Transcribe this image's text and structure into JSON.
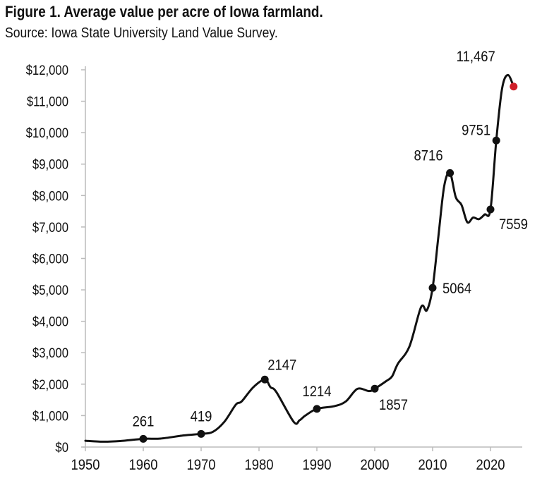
{
  "chart_data": {
    "type": "line",
    "title": "Figure 1. Average value per acre of Iowa farmland.",
    "subtitle": "Source: Iowa State University Land Value Survey.",
    "xlabel": "",
    "ylabel": "",
    "xlim": [
      1950,
      2024
    ],
    "ylim": [
      0,
      12000
    ],
    "x_ticks": [
      1950,
      1960,
      1970,
      1980,
      1990,
      2000,
      2010,
      2020
    ],
    "x_tick_labels": [
      "1950",
      "1960",
      "1970",
      "1980",
      "1990",
      "2000",
      "2010",
      "2020"
    ],
    "y_ticks": [
      0,
      1000,
      2000,
      3000,
      4000,
      5000,
      6000,
      7000,
      8000,
      9000,
      10000,
      11000,
      12000
    ],
    "y_tick_labels": [
      "$0",
      "$1,000",
      "$2,000",
      "$3,000",
      "$4,000",
      "$5,000",
      "$6,000",
      "$7,000",
      "$8,000",
      "$9,000",
      "$10,000",
      "$11,000",
      "$12,000"
    ],
    "grid": false,
    "line_color": "#111111",
    "highlight_color": "#d0202a",
    "series": [
      {
        "x": [
          1950,
          1953,
          1956,
          1960,
          1963,
          1967,
          1970,
          1972,
          1974,
          1976,
          1977,
          1979,
          1981,
          1982,
          1983,
          1986,
          1987,
          1988,
          1990,
          1993,
          1995,
          1997,
          1999,
          2000,
          2002,
          2003,
          2004,
          2006,
          2008,
          2009,
          2010,
          2011,
          2012,
          2013,
          2014,
          2015,
          2016,
          2017,
          2018,
          2019,
          2020,
          2021,
          2022,
          2023,
          2024
        ],
        "y": [
          200,
          170,
          190,
          261,
          270,
          370,
          419,
          480,
          800,
          1350,
          1450,
          1900,
          2147,
          1900,
          1750,
          800,
          850,
          1000,
          1214,
          1300,
          1450,
          1850,
          1780,
          1857,
          2100,
          2250,
          2650,
          3200,
          4450,
          4350,
          5064,
          6700,
          8300,
          8716,
          7950,
          7700,
          7150,
          7300,
          7250,
          7400,
          7559,
          9751,
          11400,
          11835,
          11467
        ]
      }
    ],
    "labeled_points": [
      {
        "x": 1960,
        "y": 261,
        "label": "261"
      },
      {
        "x": 1970,
        "y": 419,
        "label": "419"
      },
      {
        "x": 1981,
        "y": 2147,
        "label": "2147"
      },
      {
        "x": 1990,
        "y": 1214,
        "label": "1214"
      },
      {
        "x": 2000,
        "y": 1857,
        "label": "1857"
      },
      {
        "x": 2010,
        "y": 5064,
        "label": "5064"
      },
      {
        "x": 2013,
        "y": 8716,
        "label": "8716"
      },
      {
        "x": 2020,
        "y": 7559,
        "label": "7559"
      },
      {
        "x": 2021,
        "y": 9751,
        "label": "9751"
      },
      {
        "x": 2024,
        "y": 11467,
        "label": "11,467",
        "highlight": true
      }
    ]
  }
}
